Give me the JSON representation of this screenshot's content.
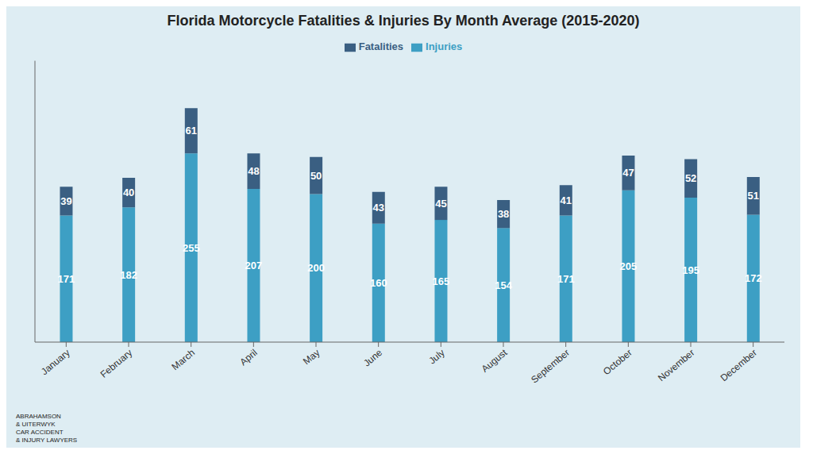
{
  "chart_data": {
    "type": "bar",
    "title": "Florida Motorcycle Fatalities & Injuries By Month Average (2015-2020)",
    "categories": [
      "January",
      "February",
      "March",
      "April",
      "May",
      "June",
      "July",
      "August",
      "September",
      "October",
      "November",
      "December"
    ],
    "series": [
      {
        "name": "Injuries",
        "color": "#3d9fc4",
        "values": [
          171,
          182,
          255,
          207,
          200,
          160,
          165,
          154,
          171,
          205,
          195,
          172
        ]
      },
      {
        "name": "Fatalities",
        "color": "#3a5f82",
        "values": [
          39,
          40,
          61,
          48,
          50,
          43,
          45,
          38,
          41,
          47,
          52,
          51
        ]
      }
    ],
    "stacked": true,
    "data_labels": true,
    "ylim": [
      0,
      380
    ],
    "grid": false,
    "legend": "top",
    "tick_labels": "x",
    "annotations": [
      "ABRAHAMSON\n& UITERWYK\nCAR ACCIDENT\n& INJURY LAWYERS"
    ]
  }
}
